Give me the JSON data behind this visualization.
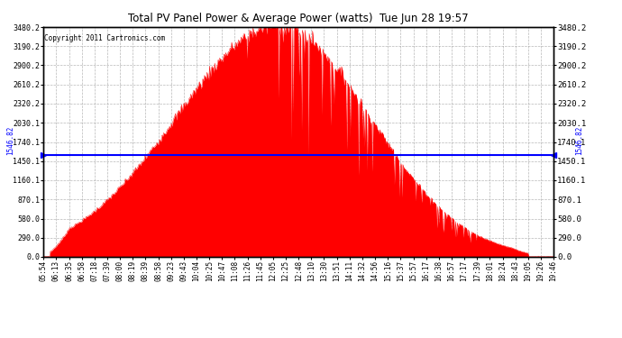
{
  "title": "Total PV Panel Power & Average Power (watts)  Tue Jun 28 19:57",
  "copyright": "Copyright 2011 Cartronics.com",
  "average_power": 1546.82,
  "y_max": 3480.2,
  "y_min": 0.0,
  "ytick_labels": [
    "0.0",
    "290.0",
    "580.0",
    "870.1",
    "1160.1",
    "1450.1",
    "1740.1",
    "2030.1",
    "2320.2",
    "2610.2",
    "2900.2",
    "3190.2",
    "3480.2"
  ],
  "ytick_values": [
    0.0,
    290.0,
    580.0,
    870.1,
    1160.1,
    1450.1,
    1740.1,
    2030.1,
    2320.2,
    2610.2,
    2900.2,
    3190.2,
    3480.2
  ],
  "xtick_labels": [
    "05:54",
    "06:13",
    "06:35",
    "06:58",
    "07:18",
    "07:39",
    "08:00",
    "08:19",
    "08:39",
    "08:58",
    "09:23",
    "09:43",
    "10:04",
    "10:25",
    "10:47",
    "11:08",
    "11:26",
    "11:45",
    "12:05",
    "12:25",
    "12:48",
    "13:10",
    "13:30",
    "13:51",
    "14:11",
    "14:32",
    "14:56",
    "15:16",
    "15:37",
    "15:57",
    "16:17",
    "16:38",
    "16:57",
    "17:17",
    "17:39",
    "18:01",
    "18:24",
    "18:43",
    "19:05",
    "19:26",
    "19:46"
  ],
  "fill_color": "#FF0000",
  "line_color": "#FF0000",
  "avg_line_color": "#0000FF",
  "grid_color": "#999999",
  "background_color": "#FFFFFF",
  "plot_bg_color": "#FFFFFF",
  "border_color": "#000000",
  "avg_label_color": "#0000FF",
  "title_color": "#000000",
  "copyright_color": "#000000"
}
